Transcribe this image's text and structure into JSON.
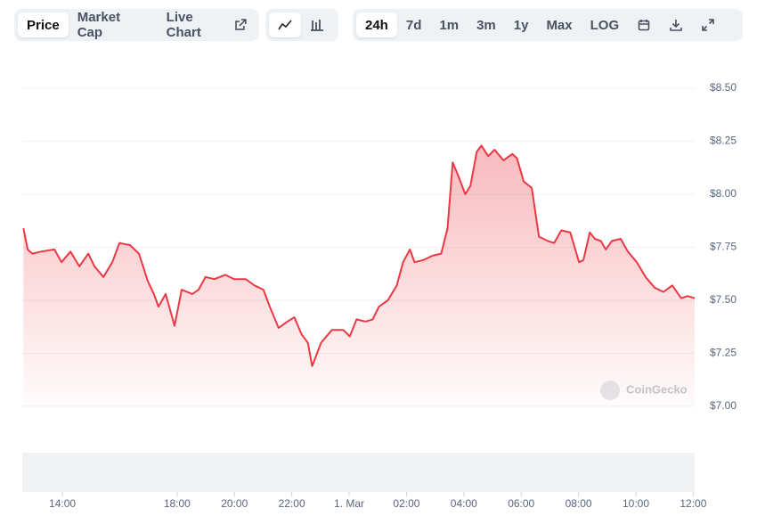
{
  "toolbar": {
    "view_tabs": [
      "Price",
      "Market Cap",
      "Live Chart"
    ],
    "range_tabs": [
      "24h",
      "7d",
      "1m",
      "3m",
      "1y",
      "Max",
      "LOG"
    ]
  },
  "watermark": "CoinGecko",
  "chart_data": {
    "type": "area",
    "color": "#ea3943",
    "grid": true,
    "x": [
      12.64,
      12.79,
      12.95,
      13.26,
      13.72,
      13.97,
      14.28,
      14.59,
      14.9,
      15.12,
      15.43,
      15.74,
      15.99,
      16.36,
      16.67,
      16.98,
      17.19,
      17.35,
      17.6,
      17.91,
      18.16,
      18.53,
      18.75,
      18.99,
      19.3,
      19.68,
      19.99,
      20.39,
      20.7,
      21.01,
      21.23,
      21.54,
      21.85,
      22.09,
      22.34,
      22.56,
      22.71,
      23.02,
      23.4,
      23.8,
      24.02,
      24.26,
      24.57,
      24.82,
      25.04,
      25.35,
      25.66,
      25.88,
      26.12,
      26.28,
      26.59,
      26.9,
      27.21,
      27.43,
      27.61,
      27.83,
      28.05,
      28.23,
      28.45,
      28.61,
      28.85,
      29.07,
      29.38,
      29.69,
      29.85,
      30.09,
      30.37,
      30.62,
      30.93,
      31.15,
      31.4,
      31.71,
      32.02,
      32.17,
      32.39,
      32.57,
      32.78,
      32.95,
      33.16,
      33.47,
      33.72,
      34.03,
      34.34,
      34.65,
      34.96,
      35.27,
      35.58,
      35.8,
      36.05
    ],
    "values": [
      7.84,
      7.74,
      7.72,
      7.73,
      7.74,
      7.68,
      7.73,
      7.66,
      7.72,
      7.66,
      7.61,
      7.68,
      7.77,
      7.76,
      7.72,
      7.59,
      7.53,
      7.47,
      7.53,
      7.38,
      7.55,
      7.53,
      7.55,
      7.61,
      7.6,
      7.62,
      7.6,
      7.6,
      7.57,
      7.55,
      7.47,
      7.37,
      7.4,
      7.42,
      7.34,
      7.3,
      7.19,
      7.3,
      7.36,
      7.36,
      7.33,
      7.41,
      7.4,
      7.41,
      7.47,
      7.5,
      7.57,
      7.68,
      7.74,
      7.68,
      7.69,
      7.71,
      7.72,
      7.84,
      8.15,
      8.08,
      8.0,
      8.04,
      8.2,
      8.23,
      8.18,
      8.21,
      8.16,
      8.19,
      8.17,
      8.06,
      8.03,
      7.8,
      7.78,
      7.77,
      7.83,
      7.82,
      7.68,
      7.69,
      7.82,
      7.79,
      7.78,
      7.74,
      7.78,
      7.79,
      7.73,
      7.68,
      7.61,
      7.56,
      7.54,
      7.57,
      7.51,
      7.52,
      7.51
    ],
    "xlim": [
      12.6,
      36.05
    ],
    "xticks": [
      {
        "value": 14,
        "label": "14:00"
      },
      {
        "value": 18,
        "label": "18:00"
      },
      {
        "value": 20,
        "label": "20:00"
      },
      {
        "value": 22,
        "label": "22:00"
      },
      {
        "value": 24,
        "label": "1. Mar"
      },
      {
        "value": 26,
        "label": "02:00"
      },
      {
        "value": 28,
        "label": "04:00"
      },
      {
        "value": 30,
        "label": "06:00"
      },
      {
        "value": 32,
        "label": "08:00"
      },
      {
        "value": 34,
        "label": "10:00"
      },
      {
        "value": 36,
        "label": "12:00"
      }
    ],
    "ylim": [
      7.0,
      8.5
    ],
    "yticks": [
      {
        "value": 7.0,
        "label": "$7.00"
      },
      {
        "value": 7.25,
        "label": "$7.25"
      },
      {
        "value": 7.5,
        "label": "$7.50"
      },
      {
        "value": 7.75,
        "label": "$7.75"
      },
      {
        "value": 8.0,
        "label": "$8.00"
      },
      {
        "value": 8.25,
        "label": "$8.25"
      },
      {
        "value": 8.5,
        "label": "$8.50"
      }
    ]
  }
}
